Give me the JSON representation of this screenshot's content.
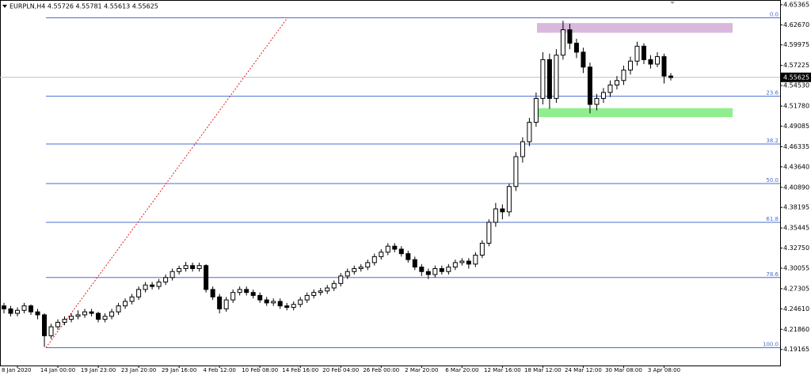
{
  "chart_data": {
    "type": "candlestick",
    "title": "EURPLN,H4  4.55726 4.55781 4.55613 4.55625",
    "categories": [
      null,
      null,
      "8 Jan 2020",
      null,
      null,
      null,
      null,
      null,
      "14 Jan 00:00",
      null,
      null,
      null,
      null,
      null,
      "19 Jan 23:00",
      null,
      null,
      null,
      null,
      null,
      "23 Jan 20:00",
      null,
      null,
      null,
      null,
      null,
      "29 Jan 16:00",
      null,
      null,
      null,
      null,
      null,
      "4 Feb 12:00",
      null,
      null,
      null,
      null,
      null,
      "10 Feb 08:00",
      null,
      null,
      null,
      null,
      null,
      "14 Feb 16:00",
      null,
      null,
      null,
      null,
      null,
      "20 Feb 04:00",
      null,
      null,
      null,
      null,
      null,
      "26 Feb 00:00",
      null,
      null,
      null,
      null,
      null,
      "2 Mar 20:00",
      null,
      null,
      null,
      null,
      null,
      "6 Mar 20:00",
      null,
      null,
      null,
      null,
      null,
      "12 Mar 16:00",
      null,
      null,
      null,
      null,
      null,
      "18 Mar 12:00",
      null,
      null,
      null,
      null,
      null,
      "24 Mar 12:00",
      null,
      null,
      null,
      null,
      null,
      "30 Mar 08:00",
      null,
      null,
      null,
      null,
      null,
      "3 Apr 08:00",
      null
    ],
    "open": [
      4.25,
      4.246,
      4.24,
      4.244,
      4.25,
      4.242,
      4.238,
      4.21,
      4.222,
      4.228,
      4.232,
      4.236,
      4.238,
      4.242,
      4.24,
      4.232,
      4.236,
      4.242,
      4.25,
      4.256,
      4.262,
      4.272,
      4.278,
      4.276,
      4.282,
      4.288,
      4.296,
      4.3,
      4.304,
      4.3,
      4.304,
      4.272,
      4.262,
      4.246,
      4.258,
      4.268,
      4.272,
      4.268,
      4.264,
      4.258,
      4.254,
      4.256,
      4.25,
      4.248,
      4.252,
      4.258,
      4.264,
      4.268,
      4.27,
      4.274,
      4.28,
      4.29,
      4.296,
      4.3,
      4.302,
      4.308,
      4.316,
      4.322,
      4.33,
      4.326,
      4.32,
      4.312,
      4.302,
      4.296,
      4.292,
      4.3,
      4.296,
      4.302,
      4.308,
      4.31,
      4.306,
      4.318,
      4.334,
      4.362,
      4.38,
      4.376,
      4.41,
      4.45,
      4.47,
      4.496,
      4.528,
      4.58,
      4.528,
      4.586,
      4.62,
      4.602,
      4.59,
      4.57,
      4.52,
      4.528,
      4.536,
      4.546,
      4.552,
      4.566,
      4.578,
      4.598,
      4.58,
      4.574,
      4.584,
      4.558
    ],
    "high": [
      4.254,
      4.25,
      4.248,
      4.254,
      4.252,
      4.246,
      4.24,
      4.226,
      4.232,
      4.236,
      4.24,
      4.244,
      4.246,
      4.246,
      4.242,
      4.24,
      4.246,
      4.254,
      4.26,
      4.266,
      4.276,
      4.282,
      4.282,
      4.286,
      4.292,
      4.3,
      4.304,
      4.309,
      4.308,
      4.308,
      4.306,
      4.276,
      4.266,
      4.262,
      4.272,
      4.276,
      4.276,
      4.272,
      4.268,
      4.262,
      4.26,
      4.26,
      4.254,
      4.256,
      4.262,
      4.268,
      4.272,
      4.274,
      4.278,
      4.284,
      4.294,
      4.3,
      4.304,
      4.306,
      4.312,
      4.32,
      4.326,
      4.334,
      4.334,
      4.33,
      4.324,
      4.316,
      4.306,
      4.3,
      4.304,
      4.304,
      4.306,
      4.312,
      4.314,
      4.314,
      4.322,
      4.338,
      4.366,
      4.388,
      4.386,
      4.414,
      4.456,
      4.476,
      4.502,
      4.536,
      4.59,
      4.588,
      4.594,
      4.632,
      4.628,
      4.608,
      4.596,
      4.576,
      4.534,
      4.542,
      4.552,
      4.558,
      4.572,
      4.584,
      4.604,
      4.602,
      4.586,
      4.59,
      4.588,
      4.562
    ],
    "low": [
      4.24,
      4.236,
      4.236,
      4.24,
      4.238,
      4.232,
      4.195,
      4.206,
      4.218,
      4.224,
      4.228,
      4.232,
      4.234,
      4.236,
      4.228,
      4.228,
      4.232,
      4.238,
      4.246,
      4.252,
      4.258,
      4.268,
      4.272,
      4.272,
      4.278,
      4.284,
      4.292,
      4.296,
      4.296,
      4.296,
      4.268,
      4.258,
      4.24,
      4.242,
      4.254,
      4.264,
      4.264,
      4.26,
      4.254,
      4.25,
      4.25,
      4.246,
      4.244,
      4.244,
      4.248,
      4.254,
      4.26,
      4.264,
      4.266,
      4.27,
      4.276,
      4.286,
      4.292,
      4.296,
      4.298,
      4.304,
      4.312,
      4.318,
      4.322,
      4.316,
      4.308,
      4.298,
      4.29,
      4.286,
      4.288,
      4.292,
      4.292,
      4.298,
      4.304,
      4.3,
      4.302,
      4.314,
      4.33,
      4.356,
      4.366,
      4.37,
      4.404,
      4.442,
      4.464,
      4.49,
      4.52,
      4.514,
      4.522,
      4.58,
      4.594,
      4.582,
      4.562,
      4.508,
      4.512,
      4.522,
      4.53,
      4.54,
      4.546,
      4.56,
      4.572,
      4.574,
      4.568,
      4.57,
      4.548,
      4.552
    ],
    "close": [
      4.246,
      4.24,
      4.244,
      4.25,
      4.242,
      4.238,
      4.21,
      4.222,
      4.228,
      4.232,
      4.236,
      4.238,
      4.242,
      4.24,
      4.232,
      4.236,
      4.242,
      4.25,
      4.256,
      4.262,
      4.272,
      4.278,
      4.276,
      4.282,
      4.288,
      4.296,
      4.3,
      4.304,
      4.3,
      4.304,
      4.272,
      4.262,
      4.246,
      4.258,
      4.268,
      4.272,
      4.268,
      4.264,
      4.258,
      4.254,
      4.256,
      4.25,
      4.248,
      4.252,
      4.258,
      4.264,
      4.268,
      4.27,
      4.274,
      4.28,
      4.29,
      4.296,
      4.3,
      4.302,
      4.308,
      4.316,
      4.322,
      4.33,
      4.326,
      4.32,
      4.312,
      4.302,
      4.296,
      4.292,
      4.3,
      4.296,
      4.302,
      4.308,
      4.31,
      4.306,
      4.318,
      4.334,
      4.362,
      4.38,
      4.376,
      4.41,
      4.45,
      4.47,
      4.496,
      4.528,
      4.58,
      4.528,
      4.586,
      4.62,
      4.602,
      4.59,
      4.57,
      4.52,
      4.528,
      4.536,
      4.546,
      4.552,
      4.566,
      4.578,
      4.598,
      4.58,
      4.574,
      4.584,
      4.558,
      4.556
    ],
    "up_color": "#ffffff",
    "down_color": "#000000",
    "wick_color": "#000000",
    "ylim": [
      4.1701,
      4.6599
    ],
    "yticks": [
      4.65365,
      {
        "value": 4.6267,
        "label": "4.62670"
      },
      4.59975,
      4.57225,
      {
        "value": 4.5453,
        "label": "4.54530"
      },
      {
        "value": 4.5178,
        "label": "4.51780"
      },
      4.49085,
      4.46335,
      {
        "value": 4.4364,
        "label": "4.43640"
      },
      {
        "value": 4.4089,
        "label": "4.40890"
      },
      4.38195,
      4.35445,
      {
        "value": 4.3275,
        "label": "4.32750"
      },
      4.30055,
      4.27305,
      {
        "value": 4.2461,
        "label": "4.24610"
      },
      {
        "value": 4.2186,
        "label": "4.21860"
      },
      4.19165
    ],
    "current_price": {
      "value": 4.55625,
      "label": "4.55625"
    },
    "fibonacci": {
      "color": "#4a6fd0",
      "levels": [
        {
          "label": "0.0",
          "price": 4.636
        },
        {
          "label": "23.6",
          "price": 4.531
        },
        {
          "label": "38.2",
          "price": 4.467
        },
        {
          "label": "50.0",
          "price": 4.414
        },
        {
          "label": "61.8",
          "price": 4.362
        },
        {
          "label": "78.6",
          "price": 4.288
        },
        {
          "label": "100.0",
          "price": 4.194
        }
      ]
    },
    "zones": [
      {
        "from": 4.616,
        "to": 4.629,
        "color": "#d8b8dc"
      },
      {
        "from": 4.503,
        "to": 4.515,
        "color": "#90ee90"
      }
    ]
  }
}
